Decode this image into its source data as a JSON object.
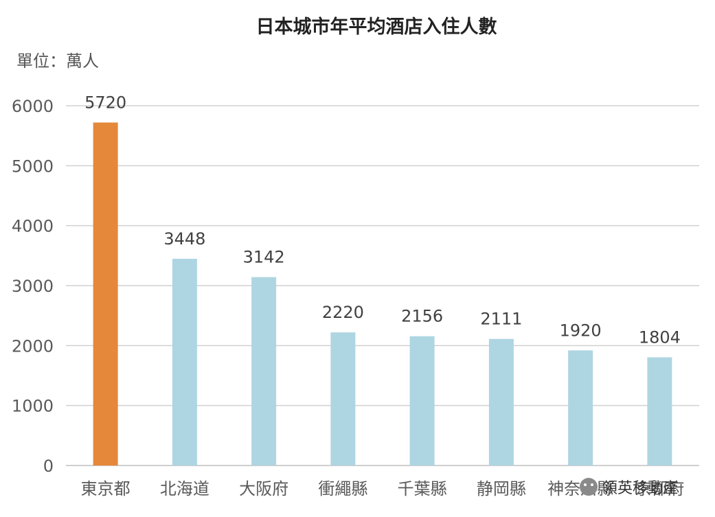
{
  "chart_data": {
    "type": "bar",
    "title": "日本城市年平均酒店入住人數",
    "unit_label": "單位：萬人",
    "categories": [
      "東京都",
      "北海道",
      "大阪府",
      "衝繩縣",
      "千葉縣",
      "静岡縣",
      "神奈川縣",
      "京都府"
    ],
    "values": [
      5720,
      3448,
      3142,
      2220,
      2156,
      2111,
      1920,
      1804
    ],
    "highlight_index": 0,
    "colors": {
      "highlight": "#E5883A",
      "default": "#AED5E2"
    },
    "ylim": [
      0,
      6000
    ],
    "yticks": [
      0,
      1000,
      2000,
      3000,
      4000,
      5000,
      6000
    ],
    "grid": true,
    "data_labels": true
  },
  "watermark": {
    "text": "領英移動產",
    "icon": "wechat-icon"
  }
}
